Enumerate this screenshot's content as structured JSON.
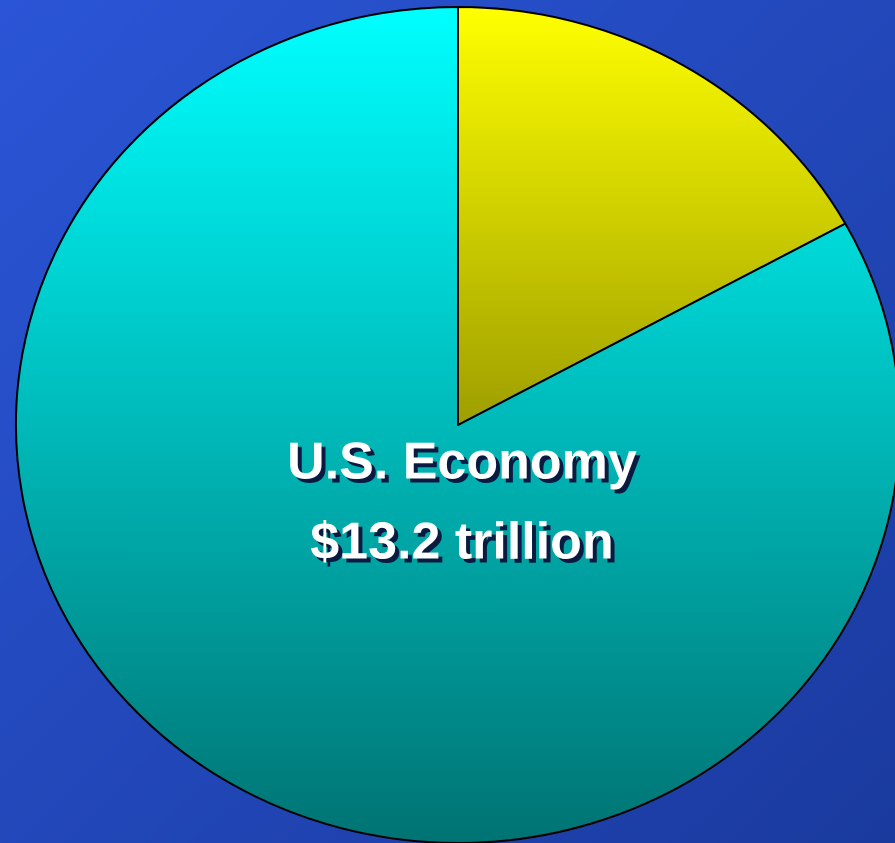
{
  "chart_data": {
    "type": "pie",
    "categories": [
      null,
      null
    ],
    "values": [
      17,
      83
    ],
    "colors": [
      "#ffff00",
      "#00ffff"
    ],
    "annotations": [
      "U.S. Economy",
      "$13.2 trillion"
    ]
  }
}
